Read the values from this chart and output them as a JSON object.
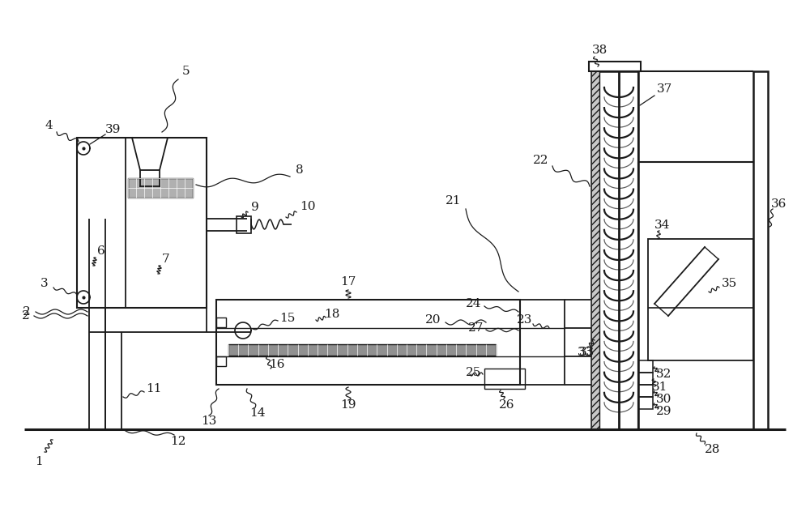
{
  "bg_color": "#ffffff",
  "line_color": "#1a1a1a",
  "fig_width": 10.0,
  "fig_height": 6.42,
  "dpi": 100
}
